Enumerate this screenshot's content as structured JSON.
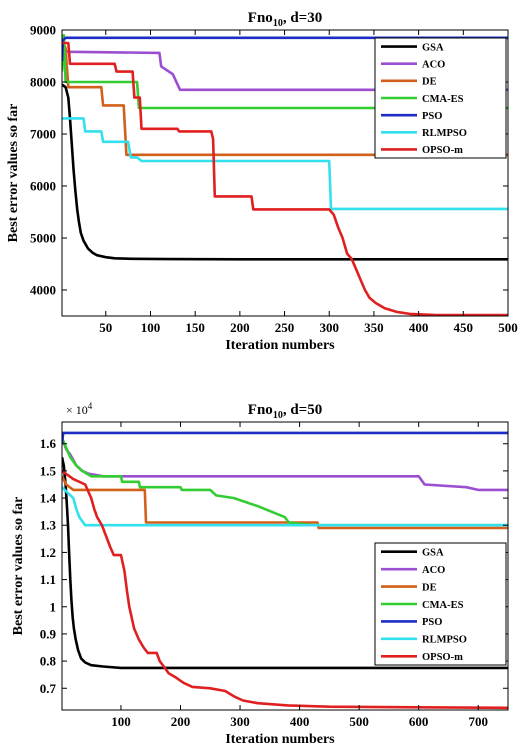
{
  "chart_data": [
    {
      "type": "line",
      "title_base": "Fno",
      "title_sub": "10",
      "title_rest": ", d=30",
      "xlabel": "Iteration numbers",
      "ylabel": "Best error values so far",
      "xlim": [
        1,
        500
      ],
      "ylim": [
        3500,
        9000
      ],
      "xticks": [
        50,
        100,
        150,
        200,
        250,
        300,
        350,
        400,
        450,
        500
      ],
      "yticks": [
        4000,
        5000,
        6000,
        7000,
        8000,
        9000
      ],
      "y_multiplier": "",
      "legend_position": "top-right",
      "series": [
        {
          "name": "GSA",
          "color": "#000000",
          "points": [
            [
              1,
              7950
            ],
            [
              5,
              7900
            ],
            [
              8,
              7700
            ],
            [
              10,
              7300
            ],
            [
              12,
              6800
            ],
            [
              14,
              6300
            ],
            [
              16,
              5900
            ],
            [
              18,
              5550
            ],
            [
              20,
              5300
            ],
            [
              22,
              5100
            ],
            [
              25,
              4950
            ],
            [
              30,
              4800
            ],
            [
              35,
              4720
            ],
            [
              40,
              4670
            ],
            [
              50,
              4630
            ],
            [
              60,
              4610
            ],
            [
              80,
              4600
            ],
            [
              120,
              4595
            ],
            [
              200,
              4590
            ],
            [
              500,
              4590
            ]
          ]
        },
        {
          "name": "ACO",
          "color": "#9b4fd0",
          "points": [
            [
              1,
              8700
            ],
            [
              3,
              8600
            ],
            [
              10,
              8580
            ],
            [
              110,
              8560
            ],
            [
              112,
              8300
            ],
            [
              125,
              8150
            ],
            [
              133,
              7850
            ],
            [
              500,
              7850
            ]
          ]
        },
        {
          "name": "DE",
          "color": "#d2601a",
          "points": [
            [
              1,
              8800
            ],
            [
              5,
              8650
            ],
            [
              8,
              7900
            ],
            [
              45,
              7900
            ],
            [
              47,
              7550
            ],
            [
              70,
              7550
            ],
            [
              73,
              6600
            ],
            [
              500,
              6600
            ]
          ]
        },
        {
          "name": "CMA-ES",
          "color": "#33cc33",
          "points": [
            [
              1,
              8200
            ],
            [
              3,
              8900
            ],
            [
              5,
              8000
            ],
            [
              85,
              8000
            ],
            [
              87,
              7500
            ],
            [
              500,
              7500
            ]
          ]
        },
        {
          "name": "PSO",
          "color": "#1c2ec4",
          "points": [
            [
              1,
              8400
            ],
            [
              2,
              8800
            ],
            [
              5,
              8850
            ],
            [
              500,
              8850
            ]
          ]
        },
        {
          "name": "RLMPSO",
          "color": "#33e0ee",
          "points": [
            [
              1,
              7300
            ],
            [
              25,
              7300
            ],
            [
              27,
              7050
            ],
            [
              45,
              7050
            ],
            [
              47,
              6850
            ],
            [
              75,
              6850
            ],
            [
              78,
              6550
            ],
            [
              85,
              6550
            ],
            [
              90,
              6480
            ],
            [
              300,
              6480
            ],
            [
              302,
              5560
            ],
            [
              500,
              5560
            ]
          ]
        },
        {
          "name": "OPSO-m",
          "color": "#e02020",
          "points": [
            [
              1,
              8750
            ],
            [
              8,
              8750
            ],
            [
              10,
              8350
            ],
            [
              60,
              8350
            ],
            [
              62,
              8200
            ],
            [
              80,
              8200
            ],
            [
              82,
              7700
            ],
            [
              88,
              7700
            ],
            [
              90,
              7100
            ],
            [
              130,
              7100
            ],
            [
              132,
              7050
            ],
            [
              168,
              7050
            ],
            [
              170,
              6900
            ],
            [
              172,
              5800
            ],
            [
              213,
              5800
            ],
            [
              215,
              5550
            ],
            [
              300,
              5550
            ],
            [
              305,
              5450
            ],
            [
              310,
              5200
            ],
            [
              315,
              5000
            ],
            [
              320,
              4700
            ],
            [
              325,
              4600
            ],
            [
              330,
              4400
            ],
            [
              335,
              4200
            ],
            [
              340,
              4000
            ],
            [
              345,
              3850
            ],
            [
              352,
              3750
            ],
            [
              362,
              3650
            ],
            [
              375,
              3580
            ],
            [
              390,
              3540
            ],
            [
              420,
              3520
            ],
            [
              500,
              3520
            ]
          ]
        }
      ]
    },
    {
      "type": "line",
      "title_base": "Fno",
      "title_sub": "10",
      "title_rest": ", d=50",
      "xlabel": "Iteration numbers",
      "ylabel": "Best error values so far",
      "xlim": [
        1,
        750
      ],
      "ylim": [
        0.62,
        1.68
      ],
      "xticks": [
        100,
        200,
        300,
        400,
        500,
        600,
        700
      ],
      "yticks": [
        0.7,
        0.8,
        0.9,
        1,
        1.1,
        1.2,
        1.3,
        1.4,
        1.5,
        1.6
      ],
      "ytick_labels": [
        "0.7",
        "0.8",
        "0.9",
        "1",
        "1.1",
        "1.2",
        "1.3",
        "1.4",
        "1.5",
        "1.6"
      ],
      "y_multiplier_base": "× 10",
      "y_multiplier_exp": "4",
      "legend_position": "center-right",
      "series": [
        {
          "name": "GSA",
          "color": "#000000",
          "points": [
            [
              1,
              1.55
            ],
            [
              4,
              1.52
            ],
            [
              7,
              1.45
            ],
            [
              9,
              1.38
            ],
            [
              11,
              1.3
            ],
            [
              13,
              1.2
            ],
            [
              15,
              1.1
            ],
            [
              17,
              1.02
            ],
            [
              19,
              0.96
            ],
            [
              21,
              0.92
            ],
            [
              24,
              0.88
            ],
            [
              28,
              0.84
            ],
            [
              33,
              0.81
            ],
            [
              40,
              0.795
            ],
            [
              50,
              0.785
            ],
            [
              70,
              0.78
            ],
            [
              100,
              0.775
            ],
            [
              200,
              0.775
            ],
            [
              750,
              0.775
            ]
          ]
        },
        {
          "name": "ACO",
          "color": "#9b4fd0",
          "points": [
            [
              1,
              1.62
            ],
            [
              8,
              1.58
            ],
            [
              15,
              1.56
            ],
            [
              25,
              1.52
            ],
            [
              35,
              1.5
            ],
            [
              45,
              1.49
            ],
            [
              70,
              1.48
            ],
            [
              600,
              1.48
            ],
            [
              610,
              1.45
            ],
            [
              680,
              1.44
            ],
            [
              700,
              1.43
            ],
            [
              750,
              1.43
            ]
          ]
        },
        {
          "name": "DE",
          "color": "#d2601a",
          "points": [
            [
              1,
              1.48
            ],
            [
              8,
              1.45
            ],
            [
              20,
              1.43
            ],
            [
              140,
              1.43
            ],
            [
              142,
              1.31
            ],
            [
              430,
              1.31
            ],
            [
              432,
              1.29
            ],
            [
              750,
              1.29
            ]
          ]
        },
        {
          "name": "CMA-ES",
          "color": "#33cc33",
          "points": [
            [
              1,
              1.62
            ],
            [
              5,
              1.6
            ],
            [
              15,
              1.55
            ],
            [
              25,
              1.52
            ],
            [
              35,
              1.5
            ],
            [
              50,
              1.48
            ],
            [
              100,
              1.48
            ],
            [
              102,
              1.46
            ],
            [
              130,
              1.46
            ],
            [
              132,
              1.44
            ],
            [
              200,
              1.44
            ],
            [
              202,
              1.43
            ],
            [
              250,
              1.43
            ],
            [
              260,
              1.41
            ],
            [
              290,
              1.4
            ],
            [
              330,
              1.37
            ],
            [
              375,
              1.33
            ],
            [
              382,
              1.31
            ],
            [
              420,
              1.3
            ],
            [
              750,
              1.3
            ]
          ]
        },
        {
          "name": "PSO",
          "color": "#1c2ec4",
          "points": [
            [
              1,
              1.6
            ],
            [
              3,
              1.64
            ],
            [
              750,
              1.64
            ]
          ]
        },
        {
          "name": "RLMPSO",
          "color": "#33e0ee",
          "points": [
            [
              1,
              1.44
            ],
            [
              10,
              1.42
            ],
            [
              20,
              1.4
            ],
            [
              25,
              1.36
            ],
            [
              30,
              1.33
            ],
            [
              40,
              1.3
            ],
            [
              750,
              1.3
            ]
          ]
        },
        {
          "name": "OPSO-m",
          "color": "#e02020",
          "points": [
            [
              1,
              1.5
            ],
            [
              20,
              1.47
            ],
            [
              40,
              1.45
            ],
            [
              50,
              1.4
            ],
            [
              55,
              1.36
            ],
            [
              60,
              1.33
            ],
            [
              68,
              1.3
            ],
            [
              75,
              1.26
            ],
            [
              82,
              1.22
            ],
            [
              88,
              1.19
            ],
            [
              100,
              1.19
            ],
            [
              106,
              1.13
            ],
            [
              110,
              1.06
            ],
            [
              114,
              1.0
            ],
            [
              118,
              0.96
            ],
            [
              122,
              0.92
            ],
            [
              130,
              0.88
            ],
            [
              138,
              0.85
            ],
            [
              145,
              0.83
            ],
            [
              160,
              0.83
            ],
            [
              165,
              0.8
            ],
            [
              172,
              0.78
            ],
            [
              180,
              0.755
            ],
            [
              192,
              0.74
            ],
            [
              205,
              0.72
            ],
            [
              220,
              0.705
            ],
            [
              250,
              0.7
            ],
            [
              275,
              0.69
            ],
            [
              290,
              0.67
            ],
            [
              305,
              0.655
            ],
            [
              330,
              0.645
            ],
            [
              380,
              0.637
            ],
            [
              450,
              0.632
            ],
            [
              600,
              0.63
            ],
            [
              750,
              0.628
            ]
          ]
        }
      ]
    }
  ]
}
